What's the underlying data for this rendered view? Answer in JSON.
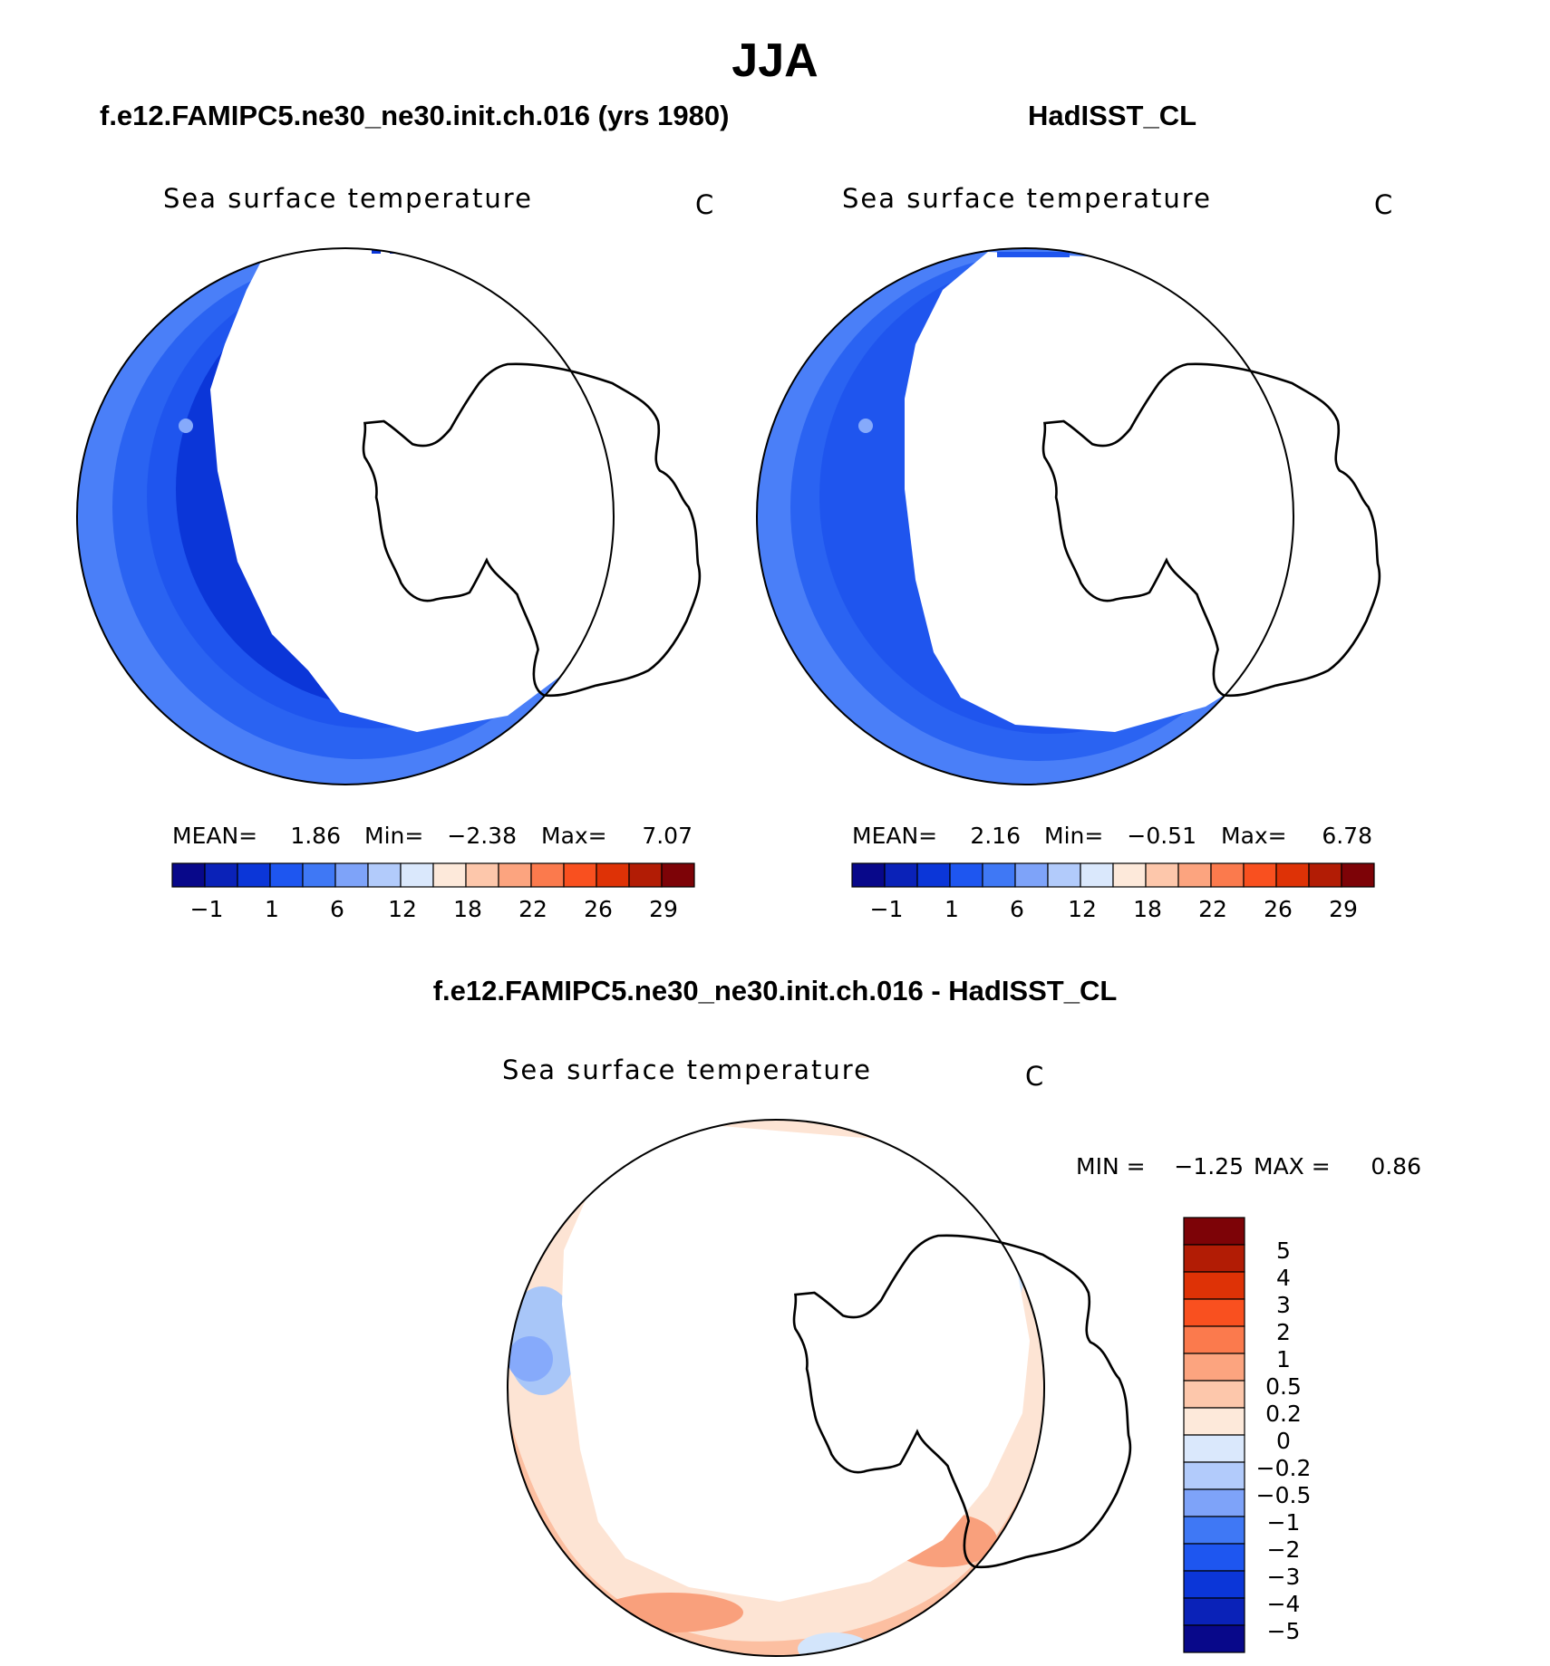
{
  "title": "JJA",
  "colors": {
    "ocean_blue_deep": "#0b2fd0",
    "ocean_blue_mid": "#1f55ee",
    "ocean_blue_light": "#4a7ff8",
    "ocean_blue_pale": "#86aafb",
    "diff_warm_light": "#fde4d4",
    "diff_warm": "#fcbfa1",
    "diff_warm_strong": "#f9a07c",
    "diff_cool_light": "#d3e5fb",
    "diff_cool": "#a8c6f8",
    "land": "#ffffff"
  },
  "panels": [
    {
      "header": "f.e12.FAMIPC5.ne30_ne30.init.ch.016 (yrs 1980)",
      "variable": "Sea surface temperature",
      "units": "C",
      "stats": {
        "mean_label": "MEAN=",
        "mean": "1.86",
        "min_label": "Min=",
        "min": "−2.38",
        "max_label": "Max=",
        "max": "7.07"
      },
      "colorbar_ticks": [
        "−1",
        "1",
        "6",
        "12",
        "18",
        "22",
        "26",
        "29"
      ]
    },
    {
      "header": "HadISST_CL",
      "variable": "Sea surface temperature",
      "units": "C",
      "stats": {
        "mean_label": "MEAN=",
        "mean": "2.16",
        "min_label": "Min=",
        "min": "−0.51",
        "max_label": "Max=",
        "max": "6.78"
      },
      "colorbar_ticks": [
        "−1",
        "1",
        "6",
        "12",
        "18",
        "22",
        "26",
        "29"
      ]
    }
  ],
  "seq_colorbar_colors": [
    "#08088a",
    "#0a22b8",
    "#0b36d8",
    "#1e56f0",
    "#3f78f5",
    "#7ea3f9",
    "#b2cbfb",
    "#dae8fc",
    "#fde9da",
    "#fdc7ab",
    "#fca47f",
    "#fb7a4d",
    "#f9501f",
    "#de3206",
    "#b21c05",
    "#7d0307"
  ],
  "diff": {
    "header": "f.e12.FAMIPC5.ne30_ne30.init.ch.016 - HadISST_CL",
    "variable": "Sea surface temperature",
    "units": "C",
    "min_label": "MIN =",
    "min": "−1.25",
    "max_label": "MAX =",
    "max": "0.86",
    "colorbar_labels": [
      "5",
      "4",
      "3",
      "2",
      "1",
      "0.5",
      "0.2",
      "0",
      "−0.2",
      "−0.5",
      "−1",
      "−2",
      "−3",
      "−4",
      "−5"
    ],
    "colorbar_colors": [
      "#7d0307",
      "#b21c05",
      "#de3206",
      "#f9501f",
      "#fb7a4d",
      "#fca47f",
      "#fdc7ab",
      "#fde9da",
      "#dae8fc",
      "#b2cbfb",
      "#7ea3f9",
      "#3f78f5",
      "#1e56f0",
      "#0b36d8",
      "#0a22b8",
      "#08088a"
    ]
  }
}
